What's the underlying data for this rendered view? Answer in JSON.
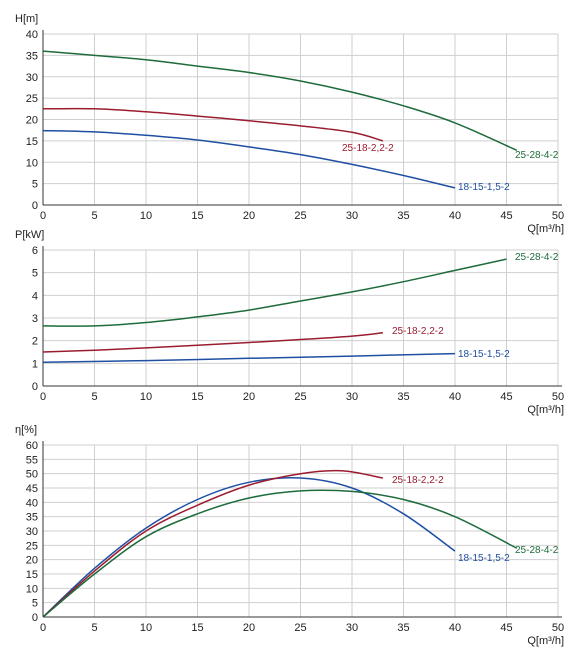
{
  "colors": {
    "blue": "#1f4fa3",
    "red": "#9b1c2e",
    "green": "#1e6b3c",
    "grid": "#cfcfcf"
  },
  "chart_data": [
    {
      "type": "line",
      "ylabel": "H[m]",
      "xlabel": "Q[m³/h]",
      "xlim": [
        0,
        50
      ],
      "ylim": [
        0,
        40
      ],
      "xticks": [
        0,
        5,
        10,
        15,
        20,
        25,
        30,
        35,
        40,
        45,
        50
      ],
      "yticks": [
        0,
        5,
        10,
        15,
        20,
        25,
        30,
        35,
        40
      ],
      "grid": true,
      "series": [
        {
          "name": "18-15-1,5-2",
          "color": "#1f4fa3",
          "x": [
            0,
            5,
            10,
            15,
            20,
            25,
            30,
            35,
            40
          ],
          "y": [
            17.4,
            17.1,
            16.3,
            15.2,
            13.6,
            11.8,
            9.5,
            6.9,
            4.0
          ]
        },
        {
          "name": "25-18-2,2-2",
          "color": "#9b1c2e",
          "x": [
            0,
            5,
            10,
            15,
            20,
            25,
            30,
            33
          ],
          "y": [
            22.5,
            22.5,
            21.8,
            20.8,
            19.7,
            18.5,
            17.0,
            15.0
          ]
        },
        {
          "name": "25-28-4-2",
          "color": "#1e6b3c",
          "x": [
            0,
            5,
            10,
            15,
            20,
            25,
            30,
            35,
            40,
            46
          ],
          "y": [
            36.0,
            35.0,
            34.0,
            32.5,
            31.0,
            29.0,
            26.4,
            23.2,
            19.2,
            12.8
          ]
        }
      ]
    },
    {
      "type": "line",
      "ylabel": "P[kW]",
      "xlabel": "Q[m³/h]",
      "xlim": [
        0,
        50
      ],
      "ylim": [
        0,
        6
      ],
      "xticks": [
        0,
        5,
        10,
        15,
        20,
        25,
        30,
        35,
        40,
        45,
        50
      ],
      "yticks": [
        0,
        1,
        2,
        3,
        4,
        5,
        6
      ],
      "grid": true,
      "series": [
        {
          "name": "18-15-1,5-2",
          "color": "#1f4fa3",
          "x": [
            0,
            10,
            20,
            30,
            40
          ],
          "y": [
            1.05,
            1.12,
            1.22,
            1.32,
            1.43
          ]
        },
        {
          "name": "25-18-2,2-2",
          "color": "#9b1c2e",
          "x": [
            0,
            5,
            10,
            15,
            20,
            25,
            30,
            33
          ],
          "y": [
            1.5,
            1.58,
            1.68,
            1.8,
            1.92,
            2.05,
            2.2,
            2.35
          ]
        },
        {
          "name": "25-28-4-2",
          "color": "#1e6b3c",
          "x": [
            0,
            5,
            10,
            15,
            20,
            25,
            30,
            35,
            40,
            45
          ],
          "y": [
            2.65,
            2.65,
            2.8,
            3.05,
            3.35,
            3.75,
            4.15,
            4.6,
            5.1,
            5.6
          ]
        }
      ]
    },
    {
      "type": "line",
      "ylabel": "η[%]",
      "xlabel": "Q[m³/h]",
      "xlim": [
        0,
        50
      ],
      "ylim": [
        0,
        60
      ],
      "xticks": [
        0,
        5,
        10,
        15,
        20,
        25,
        30,
        35,
        40,
        45,
        50
      ],
      "yticks": [
        0,
        5,
        10,
        15,
        20,
        25,
        30,
        35,
        40,
        45,
        50,
        55,
        60
      ],
      "grid": true,
      "series": [
        {
          "name": "18-15-1,5-2",
          "color": "#1f4fa3",
          "x": [
            0,
            5,
            10,
            15,
            20,
            25,
            30,
            35,
            40
          ],
          "y": [
            0,
            17,
            31,
            41,
            47,
            48.5,
            45,
            36,
            23
          ]
        },
        {
          "name": "25-18-2,2-2",
          "color": "#9b1c2e",
          "x": [
            0,
            5,
            10,
            15,
            20,
            25,
            29,
            33
          ],
          "y": [
            0,
            16,
            30,
            39,
            46,
            50,
            51,
            48.5
          ]
        },
        {
          "name": "25-28-4-2",
          "color": "#1e6b3c",
          "x": [
            0,
            5,
            10,
            15,
            20,
            25,
            30,
            35,
            40,
            46
          ],
          "y": [
            0,
            15,
            28,
            36,
            41.5,
            44,
            43.8,
            41,
            35,
            24
          ]
        }
      ]
    }
  ]
}
